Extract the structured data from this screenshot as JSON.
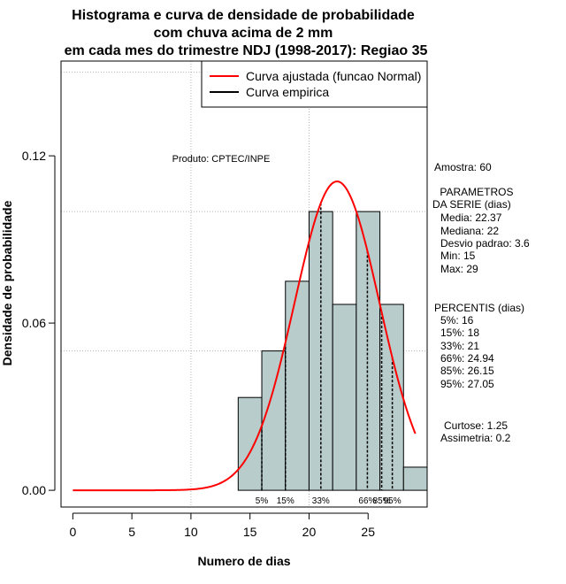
{
  "chart_data": {
    "type": "bar",
    "title_lines": [
      "Histograma e curva de densidade de probabilidade",
      "com chuva acima de 2 mm",
      "em cada mes do trimestre NDJ (1998-2017): Regiao 35"
    ],
    "xlabel": "Numero de dias",
    "ylabel": "Densidade de probabilidade",
    "xlim": [
      -1,
      30
    ],
    "ylim": [
      -0.006,
      0.154
    ],
    "x_ticks": [
      0,
      5,
      10,
      15,
      20,
      25
    ],
    "y_ticks": [
      0.0,
      0.06,
      0.12
    ],
    "y_tick_labels": [
      "0.00",
      "0.06",
      "0.12"
    ],
    "grid": true,
    "grid_x": [
      10,
      20
    ],
    "grid_y": [
      0.05,
      0.1,
      0.15
    ],
    "bins": [
      {
        "start": 14,
        "end": 16,
        "density": 0.0333
      },
      {
        "start": 16,
        "end": 18,
        "density": 0.05
      },
      {
        "start": 18,
        "end": 20,
        "density": 0.075
      },
      {
        "start": 20,
        "end": 22,
        "density": 0.1
      },
      {
        "start": 22,
        "end": 24,
        "density": 0.0667
      },
      {
        "start": 24,
        "end": 26,
        "density": 0.1
      },
      {
        "start": 26,
        "end": 28,
        "density": 0.0667
      },
      {
        "start": 28,
        "end": 30,
        "density": 0.0083
      }
    ],
    "normal_curve": {
      "mean": 22.37,
      "sd": 3.6,
      "x_from": 0,
      "x_to": 29
    },
    "percentile_lines": [
      {
        "label": "5%",
        "x": 16
      },
      {
        "label": "15%",
        "x": 18
      },
      {
        "label": "33%",
        "x": 21
      },
      {
        "label": "66%",
        "x": 24.94
      },
      {
        "label": "85%",
        "x": 26.15
      },
      {
        "label": "95%",
        "x": 27.05
      }
    ],
    "legend": {
      "position": "top-right",
      "entries": [
        {
          "label": "Curva ajustada (funcao Normal)",
          "color": "#ff0000"
        },
        {
          "label": "Curva empirica",
          "color": "#000000"
        }
      ]
    },
    "credit": "Produto: CPTEC/INPE",
    "colors": {
      "bar_fill": "#b7cccb",
      "curve": "#ff0000",
      "grid": "#b3b3b3"
    }
  },
  "side_panel": {
    "sample": "Amostra: 60",
    "params_header": [
      " PARAMETROS",
      "DA SERIE (dias)"
    ],
    "params": [
      "Media: 22.37",
      "Mediana: 22",
      "Desvio padrao: 3.6",
      "Min: 15",
      "Max: 29"
    ],
    "percentiles_header": "PERCENTIS (dias)",
    "percentiles": [
      "5%: 16",
      "15%: 18",
      "33%: 21",
      "66%: 24.94",
      "85%: 26.15",
      "95%: 27.05"
    ],
    "shape": [
      "Curtose: 1.25",
      "Assimetria: 0.2"
    ]
  }
}
